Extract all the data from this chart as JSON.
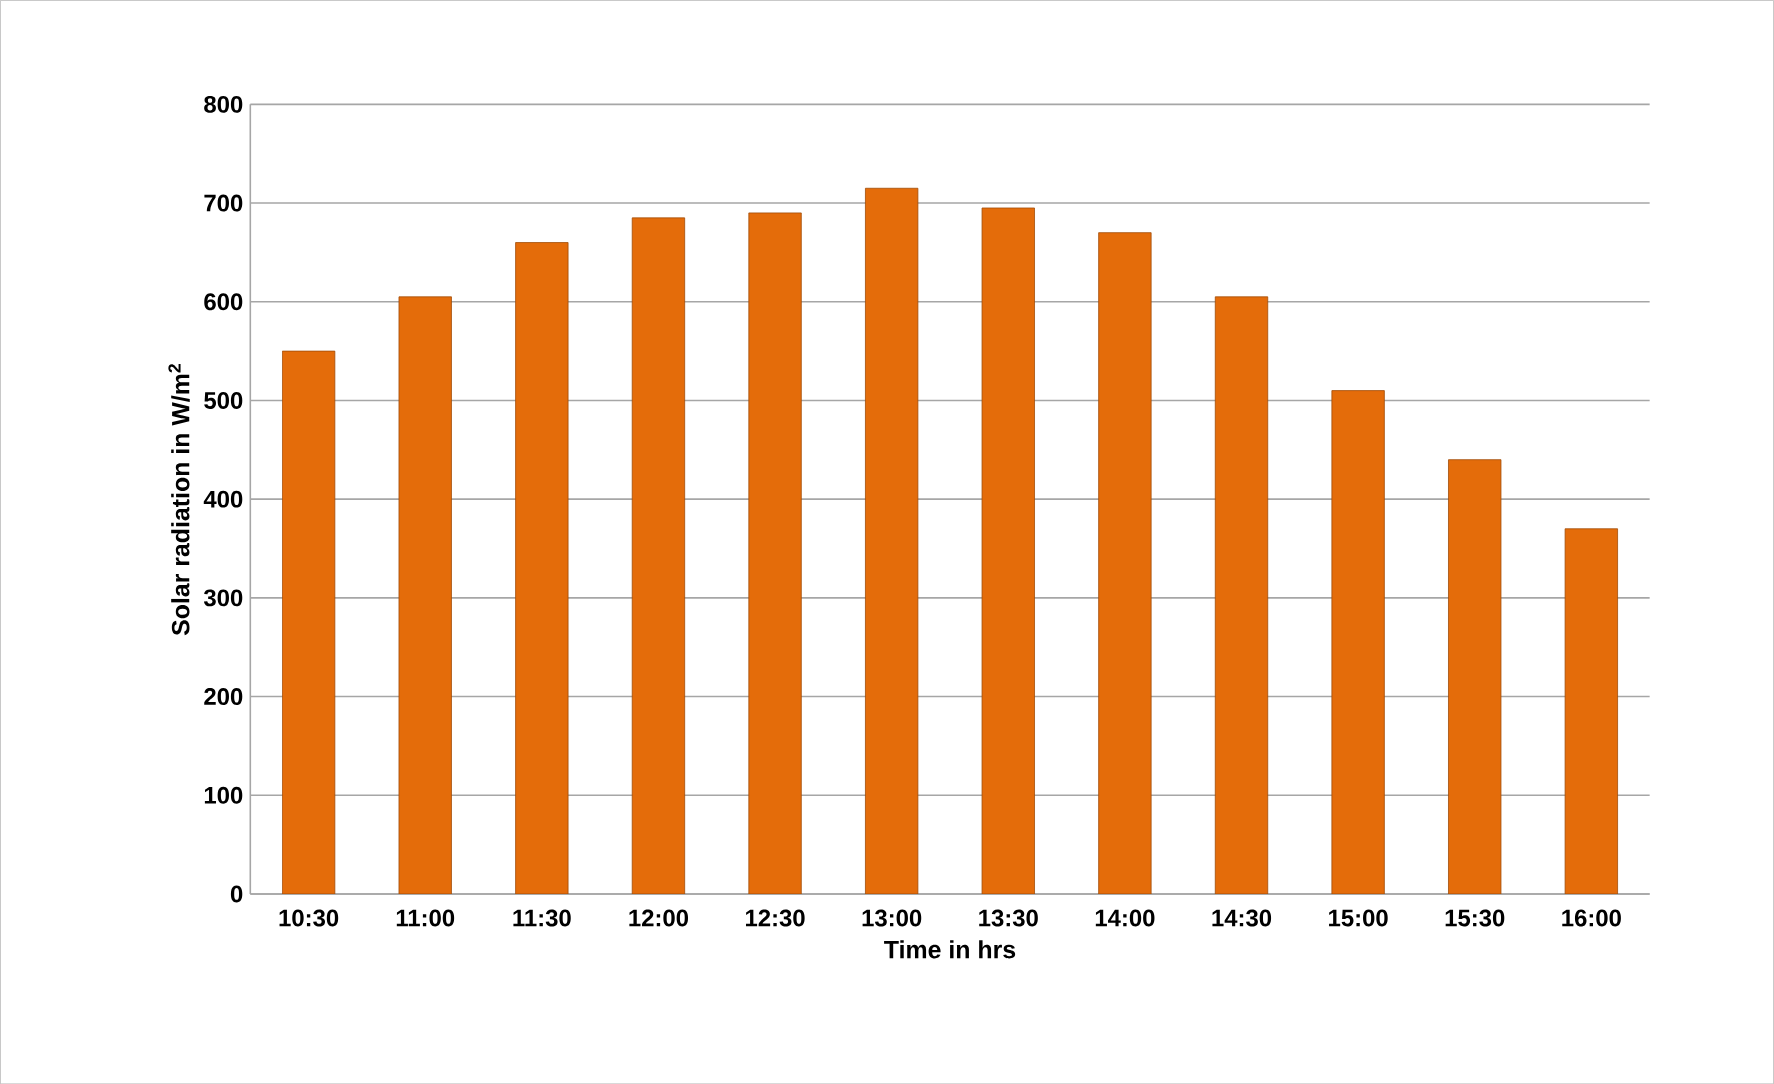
{
  "chart_data": {
    "type": "bar",
    "xlabel": "Time in hrs",
    "ylabel": "Solar radiation in W/m$^{2}$",
    "categories": [
      "10:30",
      "11:00",
      "11:30",
      "12:00",
      "12:30",
      "13:00",
      "13:30",
      "14:00",
      "14:30",
      "15:00",
      "15:30",
      "16:00"
    ],
    "values": [
      550,
      605,
      660,
      685,
      690,
      715,
      695,
      670,
      605,
      510,
      440,
      370
    ],
    "color": "#e46c0a",
    "ylim": [
      0,
      800
    ],
    "yticks": [
      0,
      100,
      200,
      300,
      400,
      500,
      600,
      700,
      800
    ],
    "grid": "y"
  }
}
